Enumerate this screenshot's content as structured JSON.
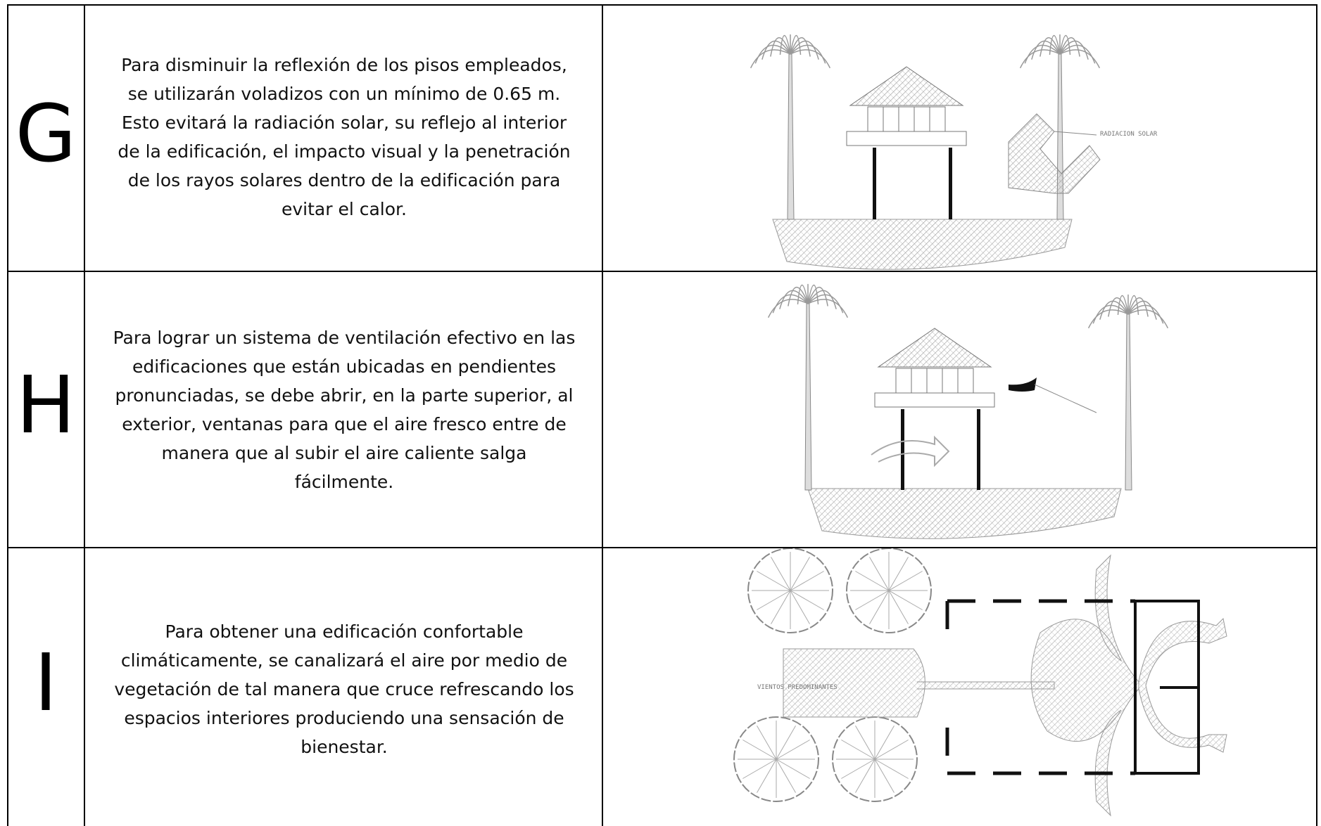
{
  "table": {
    "rows": [
      {
        "letter": "G",
        "lines": [
          "Para disminuir la reflexión de los pisos empleados,",
          "se utilizarán voladizos con un mínimo de 0.65 m.",
          "Esto evitará la radiación solar, su reflejo al interior",
          "de la edificación, el impacto visual y la penetración",
          "de los rayos solares dentro de la edificación para",
          "evitar el calor."
        ],
        "figure_label": "RADIACION SOLAR"
      },
      {
        "letter": "H",
        "lines": [
          "Para lograr un sistema de ventilación efectivo en las",
          "edificaciones que están ubicadas en pendientes",
          "pronunciadas, se debe abrir, en la parte superior, al",
          "exterior, ventanas para que el aire fresco entre de",
          "manera que al subir el aire caliente salga",
          "fácilmente."
        ]
      },
      {
        "letter": "I",
        "lines": [
          "Para obtener una edificación confortable",
          "climáticamente, se canalizará el aire por medio de",
          "vegetación de tal manera que cruce refrescando los",
          "espacios interiores produciendo una sensación de",
          "bienestar."
        ],
        "figure_label": "VIENTOS PREDOMINANTES"
      }
    ]
  }
}
